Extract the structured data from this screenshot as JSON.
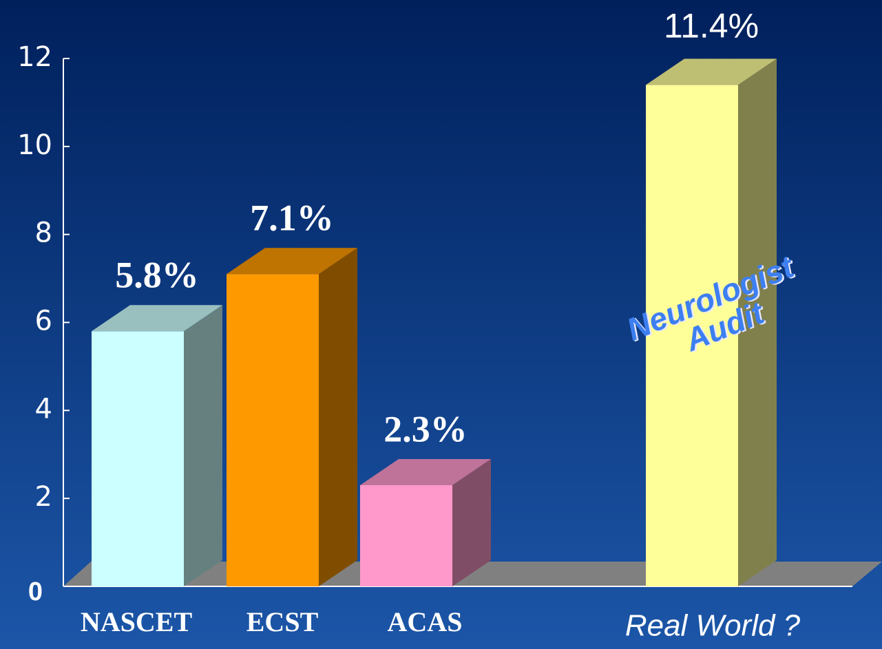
{
  "chart_data": {
    "type": "bar3d",
    "categories": [
      "NASCET",
      "ECST",
      "ACAS",
      "Real World ?"
    ],
    "values": [
      5.8,
      7.1,
      2.3,
      11.4
    ],
    "value_labels": [
      "5.8%",
      "7.1%",
      "2.3%",
      "11.4%"
    ],
    "colors": [
      "#ccffff",
      "#ff9900",
      "#ff99cc",
      "#ffff99"
    ],
    "annotation": [
      "Neurologist",
      "Audit"
    ],
    "ylim": [
      0,
      12
    ],
    "yticks": [
      0,
      2,
      4,
      6,
      8,
      10,
      12
    ]
  }
}
